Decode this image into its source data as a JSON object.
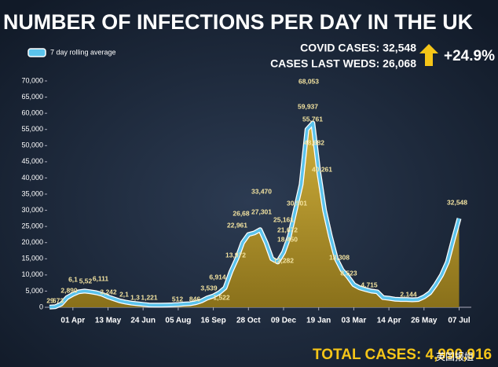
{
  "chart_data": {
    "type": "area",
    "title": "NUMBER OF INFECTIONS PER DAY IN THE UK",
    "stats": [
      "COVID CASES: 32,548",
      "CASES LAST WEDS: 26,068"
    ],
    "change": "+24.9%",
    "total": "TOTAL CASES: 4,990,916",
    "watermark": "英国报姐",
    "categories": [
      null,
      null,
      null,
      null,
      "01 Apr",
      null,
      null,
      null,
      null,
      null,
      "13 May",
      null,
      null,
      null,
      null,
      null,
      "24 Jun",
      null,
      null,
      null,
      null,
      null,
      "05 Aug",
      null,
      null,
      null,
      null,
      null,
      "16 Sep",
      null,
      null,
      null,
      null,
      null,
      "28 Oct",
      null,
      null,
      null,
      null,
      null,
      "09 Dec",
      null,
      null,
      null,
      null,
      null,
      "19 Jan",
      null,
      null,
      null,
      null,
      null,
      "03 Mar",
      null,
      null,
      null,
      null,
      null,
      "14 Apr",
      null,
      null,
      null,
      null,
      null,
      "26 May",
      null,
      null,
      null,
      null,
      null,
      "07 Jul"
    ],
    "series": [
      {
        "name": "7 day rolling average",
        "color": "#5bc3ec",
        "fill": "#c9a52c",
        "values": [
          50,
          200,
          1000,
          3000,
          4000,
          4800,
          5000,
          4800,
          4500,
          4000,
          3200,
          2600,
          2000,
          1600,
          1300,
          1100,
          900,
          700,
          650,
          650,
          700,
          750,
          850,
          1000,
          1100,
          1400,
          2000,
          2900,
          3500,
          4500,
          6000,
          11000,
          15000,
          20000,
          22500,
          23000,
          24000,
          20000,
          15000,
          14000,
          17000,
          22000,
          30000,
          38000,
          55000,
          57000,
          42000,
          30000,
          22000,
          15000,
          11500,
          9500,
          7000,
          6000,
          5500,
          5000,
          4800,
          3000,
          2800,
          2500,
          2400,
          2400,
          2300,
          2400,
          3200,
          4500,
          7000,
          10000,
          14000,
          21000,
          27500
        ]
      }
    ],
    "annotations": [
      "29",
      "673",
      "2,890",
      "6,1",
      "5,52",
      "6,111",
      "3,242",
      "2,1",
      "1,3",
      "1,221",
      "512",
      "846",
      "1,522",
      "3,539",
      "6,914",
      "13,972",
      "22,961",
      "26,68",
      "27,301",
      "33,470",
      "12,282",
      "18,450",
      "21,672",
      "25,161",
      "30,501",
      "59,937",
      "68,053",
      "55,761",
      "48,682",
      "40,261",
      "13,308",
      "8,523",
      "4,715",
      "2,144",
      "32,548"
    ],
    "ylim": [
      0,
      70000
    ],
    "yticks": [
      0,
      {
        "value": 5000,
        "label": "5,000"
      },
      {
        "value": 10000,
        "label": "10,000"
      },
      {
        "value": 15000,
        "label": "15,000"
      },
      {
        "value": 20000,
        "label": "20,000"
      },
      {
        "value": 25000,
        "label": "25,000"
      },
      {
        "value": 30000,
        "label": "30,000"
      },
      {
        "value": 35000,
        "label": "35,000"
      },
      {
        "value": 40000,
        "label": "40,000"
      },
      {
        "value": 45000,
        "label": "45,000"
      },
      {
        "value": 50000,
        "label": "50,000"
      },
      {
        "value": 55000,
        "label": "55,000"
      },
      {
        "value": 60000,
        "label": "60,000"
      },
      {
        "value": 65000,
        "label": "65,000"
      },
      {
        "value": 70000,
        "label": "70,000"
      }
    ],
    "grid": false
  }
}
